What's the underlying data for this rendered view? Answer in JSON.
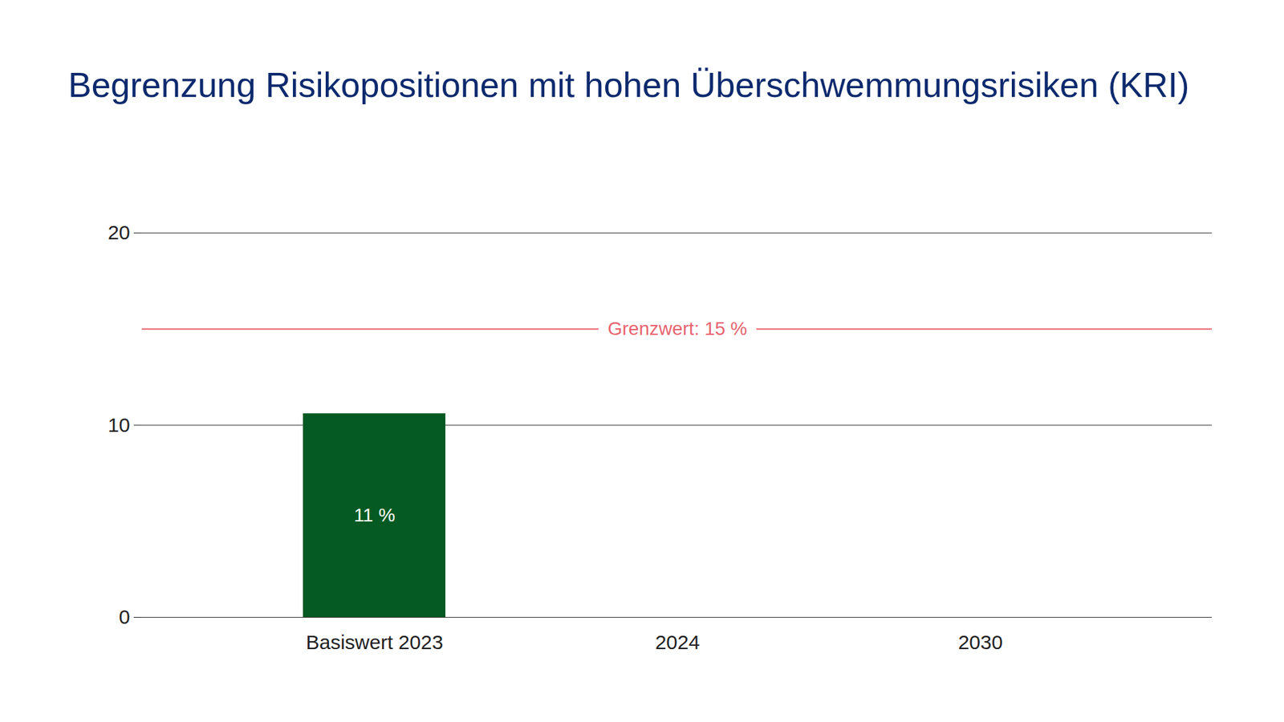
{
  "chart_data": {
    "type": "bar",
    "title": "Begrenzung Risikopositionen mit hohen Überschwemmungsrisiken (KRI)",
    "categories": [
      "Basiswert 2023",
      "2024",
      "2030"
    ],
    "values": [
      10.6,
      null,
      null
    ],
    "value_labels": [
      "11 %",
      null,
      null
    ],
    "data_labels": true,
    "color": "#045a22",
    "ylim": [
      0,
      20
    ],
    "yticks": [
      0,
      10,
      20
    ],
    "grid": true,
    "annotations": [
      {
        "text": "Grenzwert: 15 %",
        "y": 15,
        "color": "#e8636f"
      }
    ]
  }
}
